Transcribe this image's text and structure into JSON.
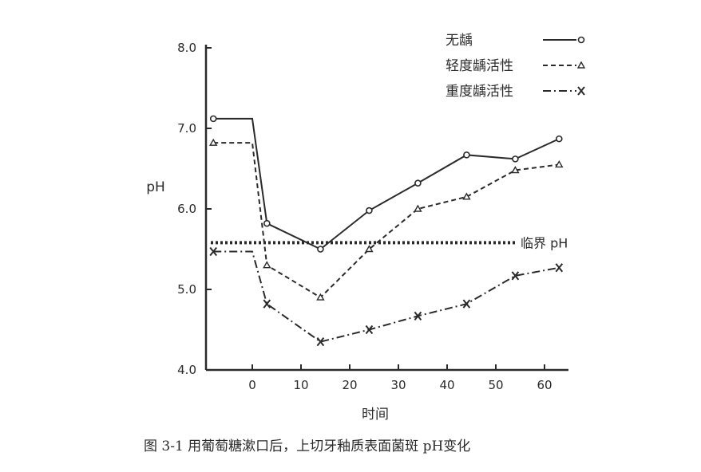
{
  "chart_data": {
    "type": "line",
    "xlabel": "时间",
    "ylabel": "pH",
    "caption": "图 3-1   用葡萄糖漱口后，上切牙釉质表面菌斑 pH变化",
    "xlim": [
      -10,
      66
    ],
    "ylim": [
      4.0,
      8.0
    ],
    "xticks": [
      "0",
      "10",
      "20",
      "30",
      "40",
      "50",
      "60"
    ],
    "yticks": [
      "4.0",
      "5.0",
      "6.0",
      "7.0",
      "8.0"
    ],
    "reference_line": {
      "label": "临界 pH",
      "y": 5.58,
      "style": "dotted"
    },
    "legend_position": "top-right",
    "series": [
      {
        "name": "无龋",
        "style": "solid",
        "marker": "circle",
        "x": [
          -8,
          0,
          3,
          14,
          24,
          34,
          44,
          54,
          63
        ],
        "y": [
          7.12,
          7.12,
          5.82,
          5.5,
          5.98,
          6.32,
          6.67,
          6.62,
          6.87
        ],
        "marked": [
          true,
          false,
          true,
          true,
          true,
          true,
          true,
          true,
          true
        ]
      },
      {
        "name": "轻度龋活性",
        "style": "dashed",
        "marker": "triangle",
        "x": [
          -8,
          0,
          3,
          14,
          24,
          34,
          44,
          54,
          63
        ],
        "y": [
          6.82,
          6.82,
          5.3,
          4.9,
          5.5,
          6.0,
          6.15,
          6.48,
          6.55
        ],
        "marked": [
          true,
          false,
          true,
          true,
          true,
          true,
          true,
          true,
          true
        ]
      },
      {
        "name": "重度龋活性",
        "style": "dashdot",
        "marker": "x",
        "x": [
          -8,
          0,
          3,
          14,
          24,
          34,
          44,
          54,
          63
        ],
        "y": [
          5.47,
          5.47,
          4.82,
          4.35,
          4.5,
          4.67,
          4.82,
          5.17,
          5.27
        ],
        "marked": [
          true,
          false,
          true,
          true,
          true,
          true,
          true,
          true,
          true
        ]
      }
    ]
  }
}
